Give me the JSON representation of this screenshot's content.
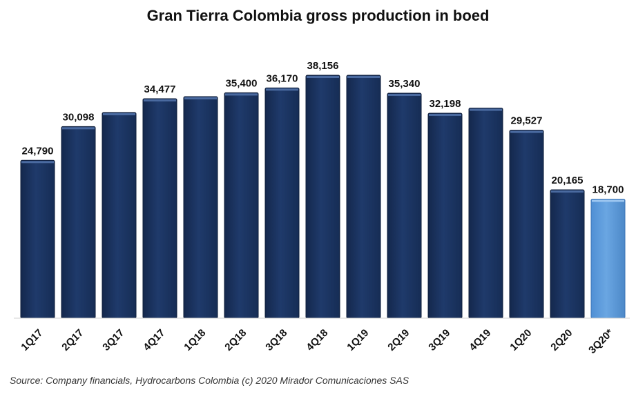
{
  "chart_data": {
    "type": "bar",
    "title": "Gran Tierra Colombia gross production in boed",
    "xlabel": "",
    "ylabel": "",
    "ylim": [
      0,
      40000
    ],
    "grid": false,
    "categories": [
      "1Q17",
      "2Q17",
      "3Q17",
      "4Q17",
      "1Q18",
      "2Q18",
      "3Q18",
      "4Q18",
      "1Q19",
      "2Q19",
      "3Q19",
      "4Q19",
      "1Q20",
      "2Q20",
      "3Q20*"
    ],
    "values": [
      24790,
      30098,
      32300,
      34477,
      34800,
      35400,
      36170,
      38156,
      38156,
      35340,
      32198,
      33000,
      29527,
      20165,
      18700
    ],
    "data_labels": [
      "24,790",
      "30,098",
      "",
      "34,477",
      "",
      "35,400",
      "36,170",
      "38,156",
      "",
      "35,340",
      "32,198",
      "",
      "29,527",
      "20,165",
      "18,700"
    ],
    "colors": {
      "bar": "#1f3864",
      "highlight": "#5b9bd5"
    },
    "highlight_index": 14,
    "source": "Source:  Company financials, Hydrocarbons  Colombia (c) 2020 Mirador  Comunicaciones SAS"
  }
}
